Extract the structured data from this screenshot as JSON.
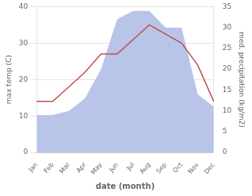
{
  "chart_data": {
    "type": "line",
    "categories": [
      "Jan",
      "Feb",
      "Mar",
      "Apr",
      "May",
      "Jun",
      "Jul",
      "Aug",
      "Sep",
      "Oct",
      "Nov",
      "Dec"
    ],
    "series": [
      {
        "type": "area",
        "axis": "y2",
        "color": "#b8c4e8",
        "values": [
          9,
          9,
          10,
          13,
          20,
          32,
          34,
          34,
          30,
          30,
          14,
          11
        ]
      },
      {
        "type": "line",
        "color": "#c0504d",
        "values": [
          14,
          14,
          18,
          22,
          27,
          27,
          31,
          35,
          32.5,
          30,
          24,
          14
        ]
      }
    ],
    "xlabel": "date (month)",
    "ylabel": "max temp (C)",
    "y2label": "med. precipitation (kg/m2)",
    "ylim": [
      0,
      40
    ],
    "yticks": [
      0,
      10,
      20,
      30,
      40
    ],
    "y2lim": [
      0,
      35
    ],
    "y2ticks": [
      0,
      5,
      10,
      15,
      20,
      25,
      30,
      35
    ],
    "grid": true
  }
}
